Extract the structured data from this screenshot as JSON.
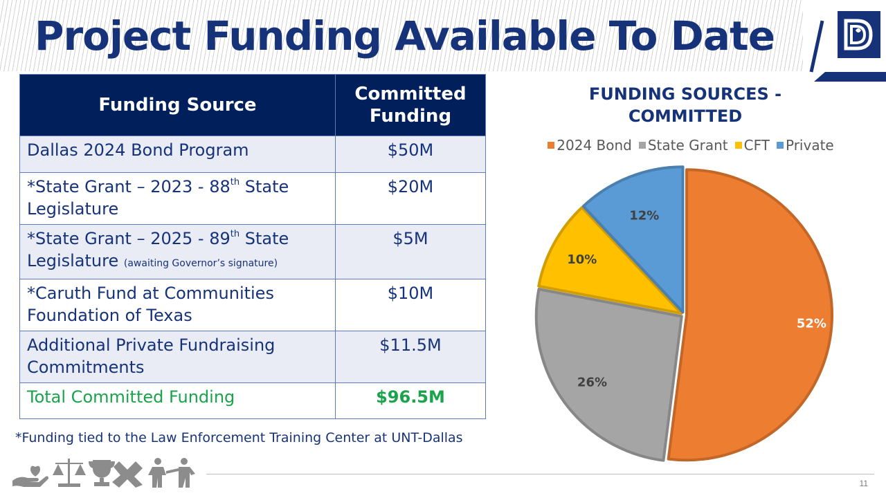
{
  "slide": {
    "title": "Project Funding Available To Date",
    "page_number": "11",
    "footnote": "*Funding tied to the Law Enforcement Training Center at UNT-Dallas"
  },
  "table": {
    "headers": [
      "Funding Source",
      "Committed Funding"
    ],
    "rows": [
      {
        "source": "Dallas 2024 Bond Program",
        "amount": "$50M"
      },
      {
        "source_pre": "*State Grant – 2023 - 88",
        "source_sup": "th",
        "source_post": " State Legislature",
        "amount": "$20M"
      },
      {
        "source_pre": "*State Grant – 2025 - 89",
        "source_sup": "th",
        "source_post": " State Legislature",
        "source_note": "(awaiting Governor’s signature)",
        "amount": "$5M"
      },
      {
        "source": "*Caruth Fund at Communities Foundation of Texas",
        "amount": "$10M"
      },
      {
        "source": "Additional Private Fundraising Commitments",
        "amount": "$11.5M"
      }
    ],
    "total": {
      "source": "Total Committed Funding",
      "amount": "$96.5M"
    }
  },
  "chart_data": {
    "type": "pie",
    "title": "FUNDING SOURCES - COMMITTED",
    "legend_position": "top",
    "categories": [
      "2024 Bond",
      "State Grant",
      "CFT",
      "Private"
    ],
    "values": [
      52,
      26,
      10,
      12
    ],
    "labels": [
      "52%",
      "26%",
      "10%",
      "12%"
    ],
    "colors": [
      "#ed7d31",
      "#a5a5a5",
      "#ffc000",
      "#5b9bd5"
    ]
  },
  "icons": [
    "hand-heart-icon",
    "scales-icon",
    "trophy-icon",
    "handshake-icon",
    "people-icon",
    "city-logo-icon"
  ]
}
